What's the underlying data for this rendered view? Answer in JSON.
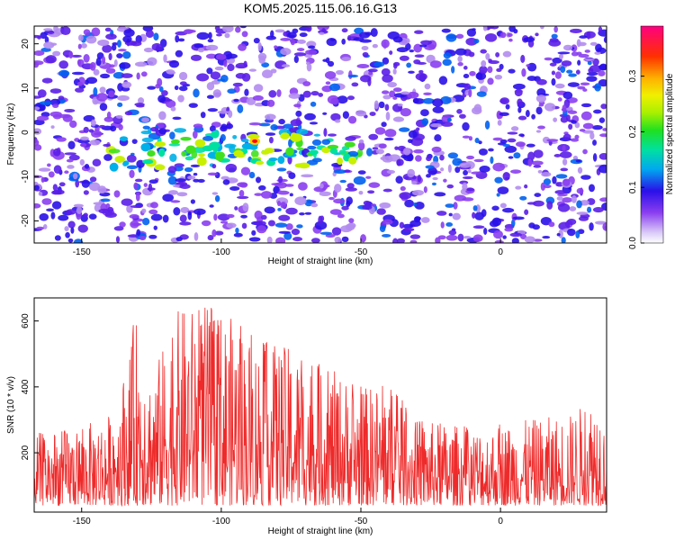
{
  "title": "KOM5.2025.115.06.16.G13",
  "chart_data": [
    {
      "type": "heatmap",
      "xlabel": "Height of straight line (km)",
      "ylabel": "Frequency (Hz)",
      "xlim": [
        -167,
        38
      ],
      "ylim": [
        -25,
        24
      ],
      "x_ticks": [
        "-150",
        "-100",
        "-50",
        "0"
      ],
      "y_ticks": [
        "-20",
        "-10",
        "0",
        "10",
        "20"
      ],
      "colorbar": {
        "label": "Normalized spectral amplitude",
        "range": [
          0.0,
          0.39
        ],
        "ticks": [
          "0.0",
          "0.1",
          "0.2",
          "0.3"
        ],
        "colormap": "rainbow"
      },
      "features": [
        {
          "description": "strongest energy band near 0 to -8 Hz between heights -140 and -50 km",
          "x_range": [
            -140,
            -50
          ],
          "y_range": [
            -8,
            0
          ]
        },
        {
          "description": "peak amplitude",
          "x": -88,
          "y": -2,
          "value": 0.38
        }
      ]
    },
    {
      "type": "line",
      "xlabel": "Height of straight line (km)",
      "ylabel": "SNR (10 * v/v)",
      "xlim": [
        -167,
        38
      ],
      "ylim": [
        20,
        670
      ],
      "x_ticks": [
        "-150",
        "-100",
        "-50",
        "0"
      ],
      "y_ticks": [
        "200",
        "400",
        "600"
      ],
      "series": [
        {
          "color": "#ee2a2a",
          "baseline_range": [
            40,
            280
          ],
          "envelope": [
            {
              "x": -167,
              "y": 260
            },
            {
              "x": -150,
              "y": 280
            },
            {
              "x": -140,
              "y": 320
            },
            {
              "x": -133,
              "y": 490
            },
            {
              "x": -131,
              "y": 625
            },
            {
              "x": -125,
              "y": 440
            },
            {
              "x": -115,
              "y": 640
            },
            {
              "x": -102,
              "y": 655
            },
            {
              "x": -95,
              "y": 600
            },
            {
              "x": -88,
              "y": 550
            },
            {
              "x": -75,
              "y": 520
            },
            {
              "x": -60,
              "y": 450
            },
            {
              "x": -48,
              "y": 400
            },
            {
              "x": -40,
              "y": 420
            },
            {
              "x": -30,
              "y": 300
            },
            {
              "x": -10,
              "y": 280
            },
            {
              "x": 10,
              "y": 300
            },
            {
              "x": 25,
              "y": 320
            },
            {
              "x": 35,
              "y": 385
            },
            {
              "x": 38,
              "y": 280
            }
          ]
        }
      ]
    }
  ],
  "colors": {
    "line": "#ee2a2a",
    "axis": "#000000"
  }
}
